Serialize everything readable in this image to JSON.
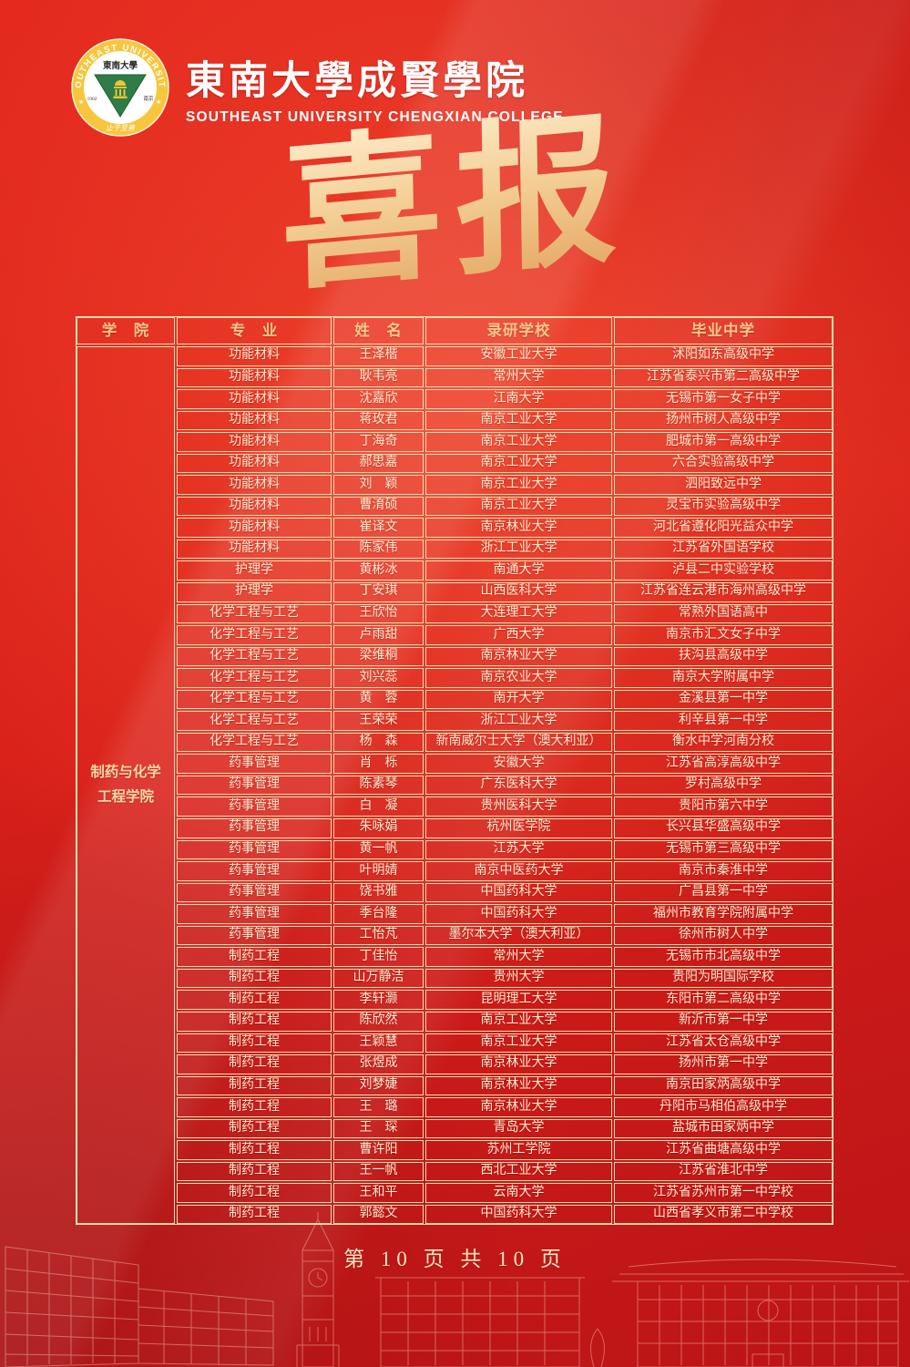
{
  "header": {
    "college_name_zh": "東南大學成賢學院",
    "college_name_en": "SOUTHEAST UNIVERSITY CHENGXIAN COLLEGE",
    "seal": {
      "ring_text": "SOUTHEAST UNIVERSITY",
      "inner_name": "東南大學",
      "year": "1902",
      "city": "南京",
      "motto": "止于至善"
    }
  },
  "title": {
    "text": "喜报"
  },
  "table": {
    "columns": [
      "学　院",
      "专　业",
      "姓　名",
      "录研学校",
      "毕业中学"
    ],
    "college": "制药与化学\n工程学院",
    "rows": [
      {
        "major": "功能材料",
        "name": "王泽楷",
        "school": "安徽工业大学",
        "high_school": "沭阳如东高级中学"
      },
      {
        "major": "功能材料",
        "name": "耿韦亮",
        "school": "常州大学",
        "high_school": "江苏省泰兴市第二高级中学"
      },
      {
        "major": "功能材料",
        "name": "沈嘉欣",
        "school": "江南大学",
        "high_school": "无锡市第一女子中学"
      },
      {
        "major": "功能材料",
        "name": "蒋玫君",
        "school": "南京工业大学",
        "high_school": "扬州市树人高级中学"
      },
      {
        "major": "功能材料",
        "name": "丁海奇",
        "school": "南京工业大学",
        "high_school": "肥城市第一高级中学"
      },
      {
        "major": "功能材料",
        "name": "郝思嘉",
        "school": "南京工业大学",
        "high_school": "六合实验高级中学"
      },
      {
        "major": "功能材料",
        "name": "刘　颖",
        "school": "南京工业大学",
        "high_school": "泗阳致远中学"
      },
      {
        "major": "功能材料",
        "name": "曹淯硕",
        "school": "南京工业大学",
        "high_school": "灵宝市实验高级中学"
      },
      {
        "major": "功能材料",
        "name": "崔译文",
        "school": "南京林业大学",
        "high_school": "河北省遵化阳光益众中学"
      },
      {
        "major": "功能材料",
        "name": "陈家伟",
        "school": "浙江工业大学",
        "high_school": "江苏省外国语学校"
      },
      {
        "major": "护理学",
        "name": "黄彬冰",
        "school": "南通大学",
        "high_school": "泸县二中实验学校"
      },
      {
        "major": "护理学",
        "name": "丁安琪",
        "school": "山西医科大学",
        "high_school": "江苏省连云港市海州高级中学"
      },
      {
        "major": "化学工程与工艺",
        "name": "王欣怡",
        "school": "大连理工大学",
        "high_school": "常熟外国语高中"
      },
      {
        "major": "化学工程与工艺",
        "name": "卢雨甜",
        "school": "广西大学",
        "high_school": "南京市汇文女子中学"
      },
      {
        "major": "化学工程与工艺",
        "name": "梁维桐",
        "school": "南京林业大学",
        "high_school": "扶沟县高级中学"
      },
      {
        "major": "化学工程与工艺",
        "name": "刘兴蕊",
        "school": "南京农业大学",
        "high_school": "南京大学附属中学"
      },
      {
        "major": "化学工程与工艺",
        "name": "黄　蓉",
        "school": "南开大学",
        "high_school": "金溪县第一中学"
      },
      {
        "major": "化学工程与工艺",
        "name": "王荣荣",
        "school": "浙江工业大学",
        "high_school": "利辛县第一中学"
      },
      {
        "major": "化学工程与工艺",
        "name": "杨　森",
        "school": "新南威尔士大学（澳大利亚）",
        "high_school": "衡水中学河南分校"
      },
      {
        "major": "药事管理",
        "name": "肖　栎",
        "school": "安徽大学",
        "high_school": "江苏省高淳高级中学"
      },
      {
        "major": "药事管理",
        "name": "陈素琴",
        "school": "广东医科大学",
        "high_school": "罗村高级中学"
      },
      {
        "major": "药事管理",
        "name": "白　凝",
        "school": "贵州医科大学",
        "high_school": "贵阳市第六中学"
      },
      {
        "major": "药事管理",
        "name": "朱咏娟",
        "school": "杭州医学院",
        "high_school": "长兴县华盛高级中学"
      },
      {
        "major": "药事管理",
        "name": "黄一帆",
        "school": "江苏大学",
        "high_school": "无锡市第三高级中学"
      },
      {
        "major": "药事管理",
        "name": "叶明婧",
        "school": "南京中医药大学",
        "high_school": "南京市秦淮中学"
      },
      {
        "major": "药事管理",
        "name": "饶书雅",
        "school": "中国药科大学",
        "high_school": "广昌县第一中学"
      },
      {
        "major": "药事管理",
        "name": "季台隆",
        "school": "中国药科大学",
        "high_school": "福州市教育学院附属中学"
      },
      {
        "major": "药事管理",
        "name": "工怡芃",
        "school": "墨尔本大学（澳大利亚）",
        "high_school": "徐州市树人中学"
      },
      {
        "major": "制药工程",
        "name": "丁佳怡",
        "school": "常州大学",
        "high_school": "无锡市市北高级中学"
      },
      {
        "major": "制药工程",
        "name": "山万静洁",
        "school": "贵州大学",
        "high_school": "贵阳为明国际学校"
      },
      {
        "major": "制药工程",
        "name": "李轩灏",
        "school": "昆明理工大学",
        "high_school": "东阳市第二高级中学"
      },
      {
        "major": "制药工程",
        "name": "陈欣然",
        "school": "南京工业大学",
        "high_school": "新沂市第一中学"
      },
      {
        "major": "制药工程",
        "name": "王颖慧",
        "school": "南京工业大学",
        "high_school": "江苏省太仓高级中学"
      },
      {
        "major": "制药工程",
        "name": "张煜成",
        "school": "南京林业大学",
        "high_school": "扬州市第一中学"
      },
      {
        "major": "制药工程",
        "name": "刘梦婕",
        "school": "南京林业大学",
        "high_school": "南京田家炳高级中学"
      },
      {
        "major": "制药工程",
        "name": "王　璐",
        "school": "南京林业大学",
        "high_school": "丹阳市马相伯高级中学"
      },
      {
        "major": "制药工程",
        "name": "王　琛",
        "school": "青岛大学",
        "high_school": "盐城市田家炳中学"
      },
      {
        "major": "制药工程",
        "name": "曹许阳",
        "school": "苏州工学院",
        "high_school": "江苏省曲塘高级中学"
      },
      {
        "major": "制药工程",
        "name": "王一帆",
        "school": "西北工业大学",
        "high_school": "江苏省淮北中学"
      },
      {
        "major": "制药工程",
        "name": "王和平",
        "school": "云南大学",
        "high_school": "江苏省苏州市第一中学校"
      },
      {
        "major": "制药工程",
        "name": "郭懿文",
        "school": "中国药科大学",
        "high_school": "山西省孝义市第二中学校"
      }
    ]
  },
  "footer": {
    "page_text": "第 10 页  共 10 页"
  },
  "colors": {
    "background_red": "#d9201a",
    "dark_red": "#bb1417",
    "border_gold": "#f2dcae",
    "header_text_gold": "#f4c78c",
    "cell_text_cream": "#f9ecd0",
    "title_gold": "#f3cf96",
    "seal_gold": "#f7c63d",
    "seal_green": "#2e7d46"
  }
}
